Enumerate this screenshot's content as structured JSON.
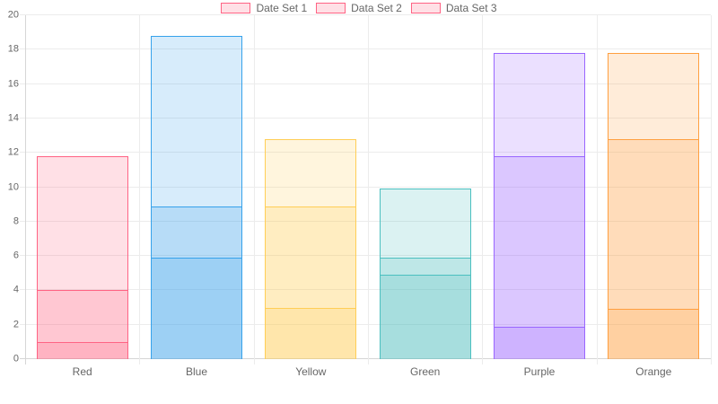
{
  "legend": {
    "swatch_fill": "rgba(255,99,132,0.2)",
    "swatch_border": "#FF6384",
    "items": [
      {
        "label": "Date Set 1"
      },
      {
        "label": "Data Set 2"
      },
      {
        "label": "Data Set 3"
      }
    ]
  },
  "chart_data": {
    "type": "bar",
    "title": "",
    "xlabel": "",
    "ylabel": "",
    "categories": [
      "Red",
      "Blue",
      "Yellow",
      "Green",
      "Purple",
      "Orange"
    ],
    "series": [
      {
        "name": "Date Set 1",
        "values": [
          11.8,
          18.8,
          12.8,
          9.9,
          17.8,
          17.8
        ]
      },
      {
        "name": "Data Set 2",
        "values": [
          4.0,
          8.9,
          8.9,
          5.9,
          11.8,
          12.8
        ]
      },
      {
        "name": "Data Set 3",
        "values": [
          1.0,
          5.9,
          3.0,
          4.9,
          1.9,
          2.9
        ]
      }
    ],
    "bar_style": "overlapping-translucent",
    "category_colors": [
      {
        "name": "red",
        "border": "#FF6384",
        "fill": "rgba(255,99,132,0.2)"
      },
      {
        "name": "blue",
        "border": "#36A2EB",
        "fill": "rgba(54,162,235,0.2)"
      },
      {
        "name": "yellow",
        "border": "#FFCE56",
        "fill": "rgba(255,206,86,0.2)"
      },
      {
        "name": "green",
        "border": "#4BC0C0",
        "fill": "rgba(75,192,192,0.2)"
      },
      {
        "name": "purple",
        "border": "#9966FF",
        "fill": "rgba(153,102,255,0.2)"
      },
      {
        "name": "orange",
        "border": "#FF9F40",
        "fill": "rgba(255,159,64,0.2)"
      }
    ],
    "y_axis": {
      "min": 0,
      "max": 20,
      "step": 2,
      "ticks": [
        0,
        2,
        4,
        6,
        8,
        10,
        12,
        14,
        16,
        18,
        20
      ]
    },
    "grid": true,
    "legend_position": "top",
    "text_color": "#666666",
    "grid_color": "#ececec",
    "axis_color": "#d6d6d6"
  }
}
